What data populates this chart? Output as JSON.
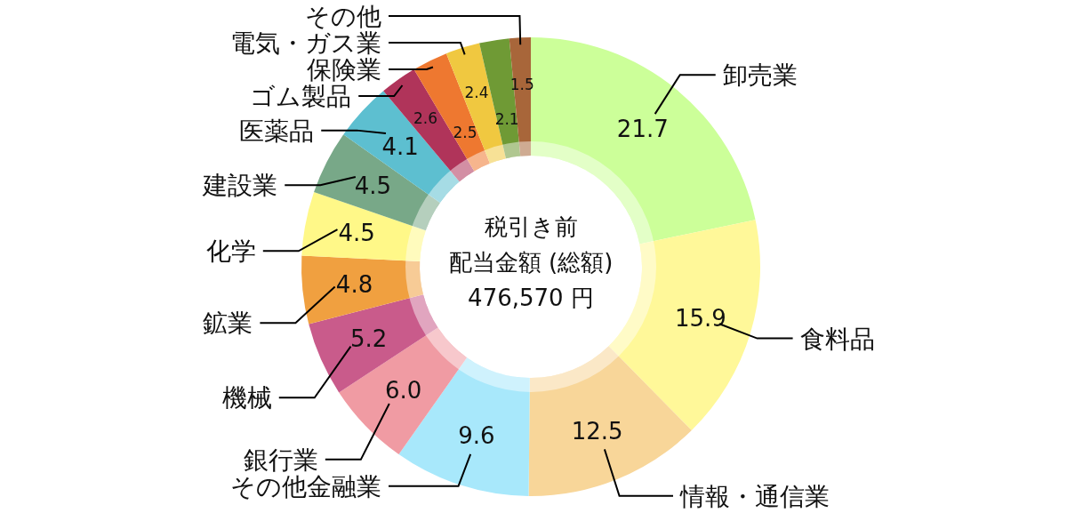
{
  "chart_data": {
    "type": "donut",
    "title": "税引き前",
    "subtitle": "配当金額 (総額)",
    "annotations": [
      "476,570 円"
    ],
    "categories": [
      "卸売業",
      "食料品",
      "情報・通信業",
      "その他金融業",
      "銀行業",
      "機械",
      "鉱業",
      "化学",
      "建設業",
      "医薬品",
      "ゴム製品",
      "保険業",
      "電気・ガス業",
      null,
      "その他"
    ],
    "values": [
      21.7,
      15.9,
      12.5,
      9.6,
      6.0,
      5.2,
      4.8,
      4.5,
      4.5,
      4.1,
      2.6,
      2.5,
      2.4,
      2.1,
      1.5
    ],
    "colors": [
      "#ccff99",
      "#fff899",
      "#f8d699",
      "#a8e8fb",
      "#f09ba3",
      "#c95b8b",
      "#f0a040",
      "#fff888",
      "#78a888",
      "#5dbfd0",
      "#b0345a",
      "#ee7830",
      "#f0c840",
      "#6f9a35",
      "#a8663a"
    ],
    "value_labels": [
      "21.7",
      "15.9",
      "12.5",
      "9.6",
      "6.0",
      "5.2",
      "4.8",
      "4.5",
      "4.5",
      "4.1",
      "2.6",
      "2.5",
      "2.4",
      "2.1",
      "1.5"
    ]
  }
}
